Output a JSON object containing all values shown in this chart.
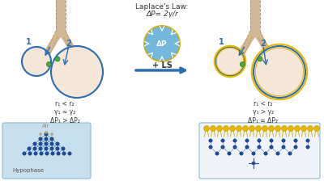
{
  "title": "Laplace's Law:\nΔP= 2γ/r",
  "bg_color": "#ffffff",
  "alveolus_fill": "#f5e6d8",
  "alveolus_border_blue": "#2a6db5",
  "alveolus_border_yellow": "#e8b800",
  "arrow_color": "#2a6db5",
  "tube_color": "#d4b896",
  "tube_border": "#b8945a",
  "label1_left": "r₁ < r₂\nγ₁ ≈ γ₂\nΔP₁ > ΔP₂",
  "label1_right": "r₁ < r₂\nγ₁ > γ₂\nΔP₁ = ΔP₂",
  "plus_ls": "+ LS",
  "center_circle_color": "#5bacd4",
  "center_circle_edge": "#c8a800",
  "hypophase_label": "Hypophase",
  "hypo_bg": "#c8dff0",
  "dot_color": "#1a4f9c",
  "small_dot_color": "#c8a878",
  "surfactant_color": "#e8b800",
  "green_dot": "#4aaa44"
}
